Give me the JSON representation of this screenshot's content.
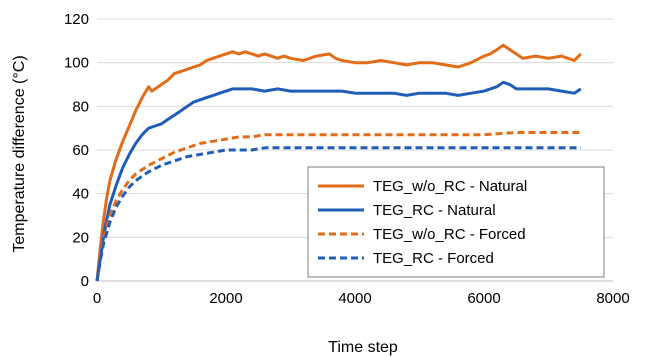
{
  "chart_data": {
    "type": "line",
    "title": "",
    "xlabel": "Time step",
    "ylabel": "Temperature difference (°C)",
    "xlim": [
      0,
      8000
    ],
    "ylim": [
      0,
      120
    ],
    "xticks": [
      0,
      2000,
      4000,
      6000,
      8000
    ],
    "yticks": [
      0,
      20,
      40,
      60,
      80,
      100,
      120
    ],
    "grid": "horizontal",
    "legend_position": "bottom-right",
    "series": [
      {
        "name": "TEG_w/o_RC - Natural",
        "color": "#E46C19",
        "style": "solid",
        "x": [
          0,
          50,
          100,
          150,
          200,
          300,
          400,
          500,
          600,
          700,
          800,
          850,
          900,
          1000,
          1100,
          1200,
          1300,
          1400,
          1500,
          1600,
          1700,
          1800,
          1900,
          2000,
          2100,
          2200,
          2300,
          2400,
          2500,
          2600,
          2700,
          2800,
          2900,
          3000,
          3200,
          3400,
          3600,
          3700,
          3800,
          4000,
          4200,
          4400,
          4600,
          4800,
          5000,
          5200,
          5400,
          5600,
          5800,
          6000,
          6100,
          6200,
          6300,
          6400,
          6500,
          6600,
          6800,
          7000,
          7200,
          7400,
          7500
        ],
        "y": [
          0,
          15,
          28,
          38,
          46,
          56,
          64,
          71,
          78,
          84,
          89,
          87,
          88,
          90,
          92,
          95,
          96,
          97,
          98,
          99,
          101,
          102,
          103,
          104,
          105,
          104,
          105,
          104,
          103,
          104,
          103,
          102,
          103,
          102,
          101,
          103,
          104,
          102,
          101,
          100,
          100,
          101,
          100,
          99,
          100,
          100,
          99,
          98,
          100,
          103,
          104,
          106,
          108,
          106,
          104,
          102,
          103,
          102,
          103,
          101,
          104
        ]
      },
      {
        "name": "TEG_RC - Natural",
        "color": "#1F5DB8",
        "style": "solid",
        "x": [
          0,
          50,
          100,
          150,
          200,
          300,
          400,
          500,
          600,
          700,
          800,
          900,
          1000,
          1100,
          1200,
          1300,
          1400,
          1500,
          1600,
          1700,
          1800,
          1900,
          2000,
          2100,
          2200,
          2300,
          2400,
          2600,
          2800,
          3000,
          3200,
          3400,
          3600,
          3800,
          4000,
          4200,
          4400,
          4600,
          4800,
          5000,
          5200,
          5400,
          5600,
          5800,
          6000,
          6100,
          6200,
          6300,
          6400,
          6500,
          6600,
          6800,
          7000,
          7200,
          7400,
          7500
        ],
        "y": [
          0,
          10,
          20,
          28,
          35,
          44,
          52,
          58,
          63,
          67,
          70,
          71,
          72,
          74,
          76,
          78,
          80,
          82,
          83,
          84,
          85,
          86,
          87,
          88,
          88,
          88,
          88,
          87,
          88,
          87,
          87,
          87,
          87,
          87,
          86,
          86,
          86,
          86,
          85,
          86,
          86,
          86,
          85,
          86,
          87,
          88,
          89,
          91,
          90,
          88,
          88,
          88,
          88,
          87,
          86,
          88
        ]
      },
      {
        "name": "TEG_w/o_RC - Forced",
        "color": "#E46C19",
        "style": "dashed",
        "x": [
          0,
          50,
          100,
          200,
          300,
          400,
          500,
          600,
          800,
          1000,
          1200,
          1400,
          1600,
          1800,
          2000,
          2200,
          2400,
          2600,
          2800,
          3000,
          3200,
          3500,
          4000,
          4500,
          5000,
          5500,
          6000,
          6500,
          7000,
          7500
        ],
        "y": [
          0,
          10,
          19,
          30,
          37,
          42,
          46,
          49,
          53,
          56,
          59,
          61,
          63,
          64,
          65,
          66,
          66,
          67,
          67,
          67,
          67,
          67,
          67,
          67,
          67,
          67,
          67,
          68,
          68,
          68
        ]
      },
      {
        "name": "TEG_RC - Forced",
        "color": "#1F5DB8",
        "style": "dashed",
        "x": [
          0,
          50,
          100,
          200,
          300,
          400,
          500,
          600,
          800,
          1000,
          1200,
          1400,
          1600,
          1800,
          2000,
          2200,
          2400,
          2600,
          2800,
          3000,
          3500,
          4000,
          4500,
          5000,
          5500,
          6000,
          6500,
          7000,
          7500
        ],
        "y": [
          0,
          9,
          17,
          27,
          34,
          39,
          43,
          46,
          50,
          53,
          55,
          57,
          58,
          59,
          60,
          60,
          60,
          61,
          61,
          61,
          61,
          61,
          61,
          61,
          61,
          61,
          61,
          61,
          61
        ]
      }
    ]
  }
}
